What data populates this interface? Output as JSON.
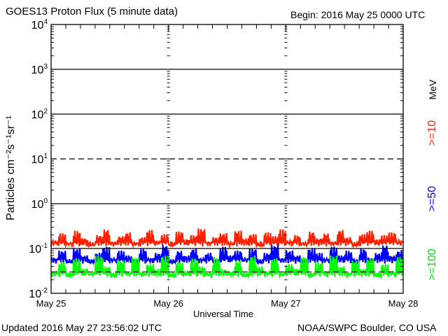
{
  "chart_data": {
    "type": "line",
    "title": "GOES13 Proton Flux (5 minute data)",
    "subtitle": "Begin: 2016 May 25 0000 UTC",
    "xlabel": "Universal Time",
    "ylabel": "Particles cm⁻²s⁻¹sr⁻¹",
    "x_tick_labels": [
      "May 25",
      "May 26",
      "May 27",
      "May 28"
    ],
    "xlim_days": [
      0,
      3
    ],
    "yscale": "log",
    "ylim": [
      0.01,
      10000
    ],
    "y_tick_labels": [
      {
        "base": "10",
        "exp": "4"
      },
      {
        "base": "10",
        "exp": "3"
      },
      {
        "base": "10",
        "exp": "2"
      },
      {
        "base": "10",
        "exp": "1"
      },
      {
        "base": "10",
        "exp": "0"
      },
      {
        "base": "10",
        "exp": "-1"
      },
      {
        "base": "10",
        "exp": "-2"
      }
    ],
    "legend_unit": "MeV",
    "series": [
      {
        "name": ">=10",
        "color": "#ff2000",
        "values": [
          0.15,
          0.22,
          0.13,
          0.25,
          0.17,
          0.12,
          0.2,
          0.27,
          0.14,
          0.19,
          0.23,
          0.13,
          0.18,
          0.26,
          0.15,
          0.21,
          0.12,
          0.24,
          0.16,
          0.2,
          0.28,
          0.14,
          0.18,
          0.22,
          0.13,
          0.25,
          0.17,
          0.21,
          0.12,
          0.23,
          0.19,
          0.27,
          0.15,
          0.2,
          0.13,
          0.24,
          0.17,
          0.22,
          0.14,
          0.26,
          0.18,
          0.12,
          0.21,
          0.25,
          0.16,
          0.2,
          0.23,
          0.15
        ]
      },
      {
        "name": ">=50",
        "color": "#0000ff",
        "values": [
          0.06,
          0.09,
          0.05,
          0.1,
          0.07,
          0.05,
          0.08,
          0.11,
          0.06,
          0.09,
          0.07,
          0.05,
          0.1,
          0.06,
          0.08,
          0.12,
          0.05,
          0.09,
          0.07,
          0.1,
          0.06,
          0.08,
          0.05,
          0.11,
          0.07,
          0.09,
          0.06,
          0.1,
          0.05,
          0.08,
          0.12,
          0.06,
          0.09,
          0.07,
          0.05,
          0.1,
          0.08,
          0.06,
          0.11,
          0.07,
          0.09,
          0.05,
          0.1,
          0.06,
          0.08,
          0.12,
          0.07,
          0.09
        ]
      },
      {
        "name": ">=100",
        "color": "#00ff00",
        "values": [
          0.03,
          0.05,
          0.025,
          0.06,
          0.035,
          0.028,
          0.07,
          0.04,
          0.025,
          0.055,
          0.03,
          0.065,
          0.028,
          0.045,
          0.035,
          0.07,
          0.025,
          0.05,
          0.03,
          0.06,
          0.04,
          0.027,
          0.065,
          0.035,
          0.03,
          0.055,
          0.025,
          0.07,
          0.04,
          0.03,
          0.06,
          0.028,
          0.045,
          0.035,
          0.065,
          0.025,
          0.05,
          0.03,
          0.07,
          0.04,
          0.028,
          0.055,
          0.035,
          0.06,
          0.025,
          0.045,
          0.03,
          0.065
        ]
      }
    ],
    "grid_solid": [
      1000,
      100,
      1,
      0.1
    ],
    "grid_dashed": [
      10
    ]
  },
  "footer": {
    "updated": "Updated 2016 May 27 23:56:02 UTC",
    "credit": "NOAA/SWPC Boulder, CO USA"
  }
}
